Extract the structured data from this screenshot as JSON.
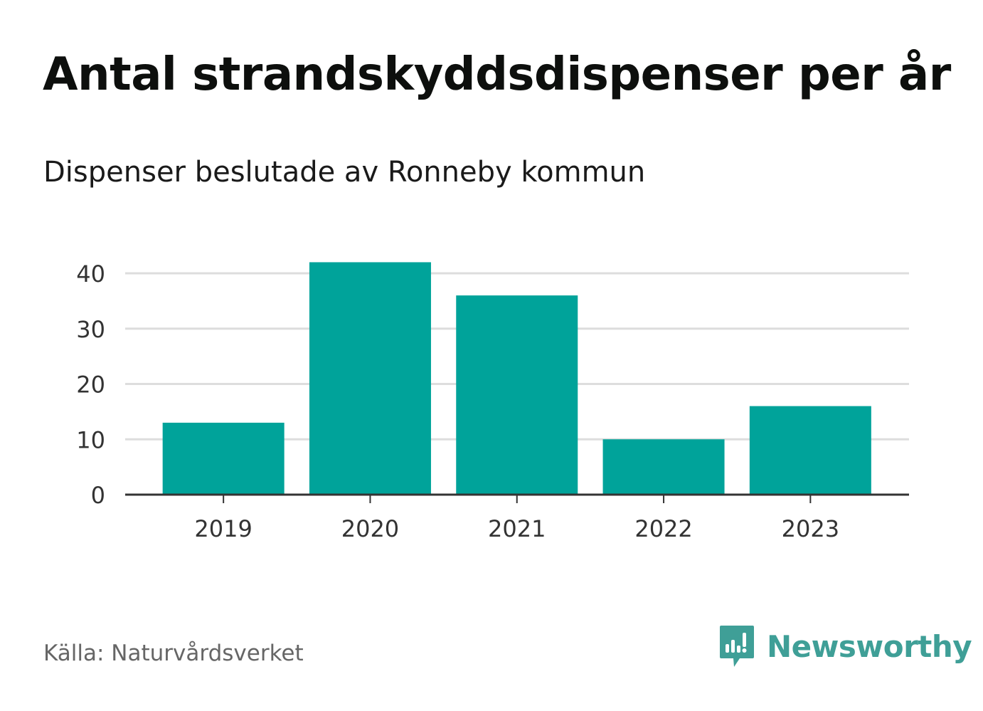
{
  "title": "Antal strandskyddsdispenser per år",
  "subtitle": "Dispenser beslutade av Ronneby kommun",
  "source": "Källa: Naturvårdsverket",
  "brand": {
    "name": "Newsworthy",
    "logo_icon": "newsworthy-chart-bubble-icon",
    "color": "#3f9f97"
  },
  "colors": {
    "bar": "#00a39a",
    "grid": "#dddddd",
    "axis": "#333333"
  },
  "chart_data": {
    "type": "bar",
    "title": "Antal strandskyddsdispenser per år",
    "subtitle": "Dispenser beslutade av Ronneby kommun",
    "categories": [
      "2019",
      "2020",
      "2021",
      "2022",
      "2023"
    ],
    "values": [
      13,
      42,
      36,
      10,
      16
    ],
    "xlabel": "",
    "ylabel": "",
    "ylim": [
      0,
      40
    ],
    "yticks": [
      "0",
      "10",
      "20",
      "30",
      "40"
    ],
    "grid": true,
    "legend": "none"
  }
}
